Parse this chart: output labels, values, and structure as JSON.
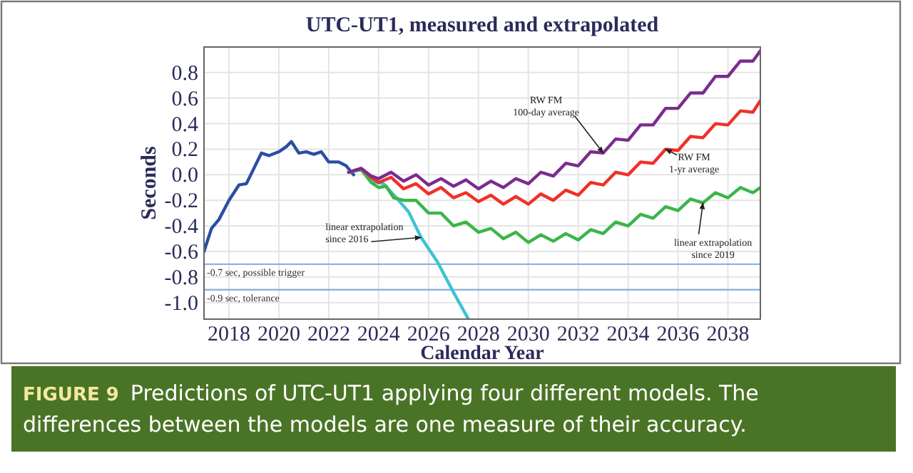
{
  "chart_data": {
    "type": "line",
    "title": "UTC-UT1, measured and extrapolated",
    "xlabel": "Calendar Year",
    "ylabel": "Seconds",
    "xlim": [
      2017,
      2039.3
    ],
    "ylim": [
      -1.13,
      1.0
    ],
    "xticks": [
      2018,
      2020,
      2022,
      2024,
      2026,
      2028,
      2030,
      2032,
      2034,
      2036,
      2038
    ],
    "yticks": [
      {
        "value": -1,
        "label": "-1.0"
      },
      -0.8,
      -0.6,
      -0.4,
      -0.2,
      {
        "value": 0,
        "label": "0.0"
      },
      0.2,
      0.4,
      0.6,
      0.8
    ],
    "grid": true,
    "series": [
      {
        "color": "#2b4ea5",
        "x": [
          2017.0,
          2017.3,
          2017.6,
          2018.0,
          2018.4,
          2018.7,
          2019.0,
          2019.3,
          2019.6,
          2020.0,
          2020.3,
          2020.5,
          2020.8,
          2021.1,
          2021.4,
          2021.7,
          2022.0,
          2022.4,
          2022.7,
          2023.0
        ],
        "values": [
          -0.6,
          -0.42,
          -0.35,
          -0.2,
          -0.08,
          -0.07,
          0.05,
          0.17,
          0.15,
          0.18,
          0.22,
          0.26,
          0.17,
          0.18,
          0.16,
          0.18,
          0.1,
          0.1,
          0.07,
          0.0
        ]
      },
      {
        "color": "#3dc3d2",
        "x": [
          2022.8,
          2023.3,
          2023.7,
          2024.2,
          2024.8,
          2025.2,
          2025.7,
          2026.35,
          2027.0,
          2027.6
        ],
        "values": [
          0.02,
          0.04,
          -0.05,
          -0.07,
          -0.2,
          -0.29,
          -0.49,
          -0.68,
          -0.92,
          -1.13
        ]
      },
      {
        "color": "#3cb54a",
        "x": [
          2022.8,
          2023.3,
          2023.7,
          2024.0,
          2024.3,
          2024.6,
          2025.0,
          2025.5,
          2026.0,
          2026.5,
          2027.0,
          2027.5,
          2028.0,
          2028.5,
          2029.0,
          2029.5,
          2030.0,
          2030.5,
          2031.0,
          2031.5,
          2032.0,
          2032.5,
          2033.0,
          2033.5,
          2034.0,
          2034.5,
          2035.0,
          2035.5,
          2036.0,
          2036.5,
          2037.0,
          2037.5,
          2038.0,
          2038.5,
          2039.0,
          2039.3
        ],
        "values": [
          0.02,
          0.04,
          -0.06,
          -0.1,
          -0.09,
          -0.18,
          -0.2,
          -0.2,
          -0.3,
          -0.3,
          -0.4,
          -0.37,
          -0.45,
          -0.42,
          -0.5,
          -0.45,
          -0.53,
          -0.47,
          -0.52,
          -0.46,
          -0.51,
          -0.43,
          -0.46,
          -0.37,
          -0.4,
          -0.31,
          -0.34,
          -0.25,
          -0.28,
          -0.19,
          -0.22,
          -0.14,
          -0.18,
          -0.1,
          -0.14,
          -0.1
        ]
      },
      {
        "color": "#f0302a",
        "x": [
          2022.8,
          2023.3,
          2023.7,
          2024.0,
          2024.5,
          2025.0,
          2025.5,
          2026.0,
          2026.5,
          2027.0,
          2027.5,
          2028.0,
          2028.5,
          2029.0,
          2029.5,
          2030.0,
          2030.5,
          2031.0,
          2031.5,
          2032.0,
          2032.5,
          2033.0,
          2033.5,
          2034.0,
          2034.5,
          2035.0,
          2035.5,
          2036.0,
          2036.5,
          2037.0,
          2037.5,
          2038.0,
          2038.5,
          2039.0,
          2039.3
        ],
        "values": [
          0.02,
          0.05,
          -0.02,
          -0.06,
          -0.02,
          -0.11,
          -0.07,
          -0.15,
          -0.1,
          -0.18,
          -0.14,
          -0.21,
          -0.16,
          -0.23,
          -0.17,
          -0.23,
          -0.15,
          -0.2,
          -0.12,
          -0.16,
          -0.06,
          -0.08,
          0.02,
          0.0,
          0.1,
          0.09,
          0.2,
          0.19,
          0.3,
          0.29,
          0.4,
          0.39,
          0.5,
          0.49,
          0.58
        ]
      },
      {
        "color": "#7b2b8f",
        "x": [
          2022.8,
          2023.3,
          2023.7,
          2024.0,
          2024.5,
          2025.0,
          2025.5,
          2026.0,
          2026.5,
          2027.0,
          2027.5,
          2028.0,
          2028.5,
          2029.0,
          2029.5,
          2030.0,
          2030.5,
          2031.0,
          2031.5,
          2032.0,
          2032.5,
          2033.0,
          2033.5,
          2034.0,
          2034.5,
          2035.0,
          2035.5,
          2036.0,
          2036.5,
          2037.0,
          2037.5,
          2038.0,
          2038.5,
          2039.0,
          2039.3
        ],
        "values": [
          0.02,
          0.05,
          -0.01,
          -0.03,
          0.02,
          -0.05,
          0.0,
          -0.08,
          -0.03,
          -0.09,
          -0.04,
          -0.11,
          -0.05,
          -0.1,
          -0.03,
          -0.07,
          0.02,
          -0.01,
          0.09,
          0.07,
          0.18,
          0.17,
          0.28,
          0.27,
          0.39,
          0.39,
          0.52,
          0.52,
          0.64,
          0.64,
          0.77,
          0.77,
          0.89,
          0.89,
          0.97
        ]
      }
    ],
    "ref_lines": [
      {
        "axis": "y",
        "value": -0.7,
        "label": "-0.7 sec, possible trigger",
        "color": "#8fb4e0"
      },
      {
        "axis": "y",
        "value": -0.9,
        "label": "-0.9 sec, tolerance",
        "color": "#8fb4e0"
      }
    ],
    "annotations": [
      {
        "text": "RW FM\n100-day average",
        "x": 2033.0,
        "y": 0.17
      },
      {
        "text": "RW FM\n1-yr average",
        "x": 2035.5,
        "y": 0.2
      },
      {
        "text": "linear extrapolation\nsince 2019",
        "x": 2037.0,
        "y": -0.22
      },
      {
        "text": "linear extrapolation\nsince 2016",
        "x": 2025.7,
        "y": -0.49
      },
      "FIGURE 9",
      "Predictions of UTC-UT1 applying four different models. The differences between the models are one measure of their accuracy."
    ]
  }
}
